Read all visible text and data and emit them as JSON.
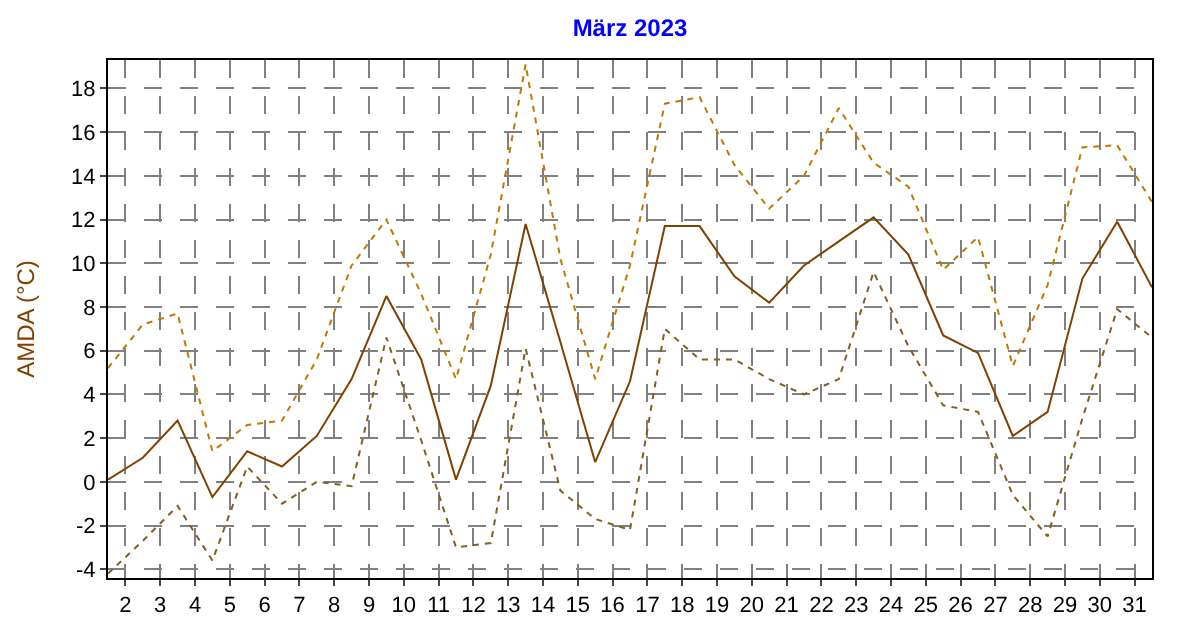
{
  "chart_data": {
    "type": "line",
    "title": "März 2023",
    "ylabel": "AMDA (°C)",
    "x": [
      1.5,
      2.5,
      3.5,
      4.5,
      5.5,
      6.5,
      7.5,
      8.5,
      9.5,
      10.5,
      11.5,
      12.5,
      13.5,
      14.5,
      15.5,
      16.5,
      17.5,
      18.5,
      19.5,
      20.5,
      21.5,
      22.5,
      23.5,
      24.5,
      25.5,
      26.5,
      27.5,
      28.5,
      29.5,
      30.5,
      31.5
    ],
    "series": [
      {
        "color": "#c07800",
        "line_style": "dotted",
        "values": [
          5.2,
          7.2,
          7.7,
          1.4,
          2.6,
          2.8,
          5.6,
          9.9,
          12.0,
          8.6,
          4.7,
          10.4,
          19.1,
          10.2,
          4.7,
          9.9,
          17.3,
          17.6,
          14.5,
          12.5,
          14.0,
          17.1,
          14.6,
          13.5,
          9.7,
          11.2,
          5.3,
          9.0,
          15.3,
          15.4,
          12.8
        ]
      },
      {
        "color": "#804000",
        "line_style": "solid",
        "values": [
          0.1,
          1.1,
          2.8,
          -0.7,
          1.4,
          0.7,
          2.1,
          4.7,
          8.5,
          5.6,
          0.1,
          4.4,
          11.8,
          6.4,
          0.9,
          4.6,
          11.7,
          11.7,
          9.4,
          8.2,
          9.9,
          11.0,
          12.1,
          10.4,
          6.7,
          5.9,
          2.1,
          3.2,
          9.3,
          11.9,
          8.9
        ]
      },
      {
        "color": "#806020",
        "line_style": "dotted",
        "values": [
          -4.2,
          -2.7,
          -1.1,
          -3.6,
          0.7,
          -1.0,
          0.0,
          -0.2,
          6.6,
          1.9,
          -3.0,
          -2.8,
          6.1,
          -0.4,
          -1.7,
          -2.2,
          7.0,
          5.6,
          5.6,
          4.7,
          4.0,
          4.7,
          9.6,
          6.2,
          3.5,
          3.2,
          -0.6,
          -2.5,
          2.9,
          7.9,
          6.6
        ]
      }
    ],
    "xlim": [
      1.5,
      31.5
    ],
    "xticks": [
      2,
      3,
      4,
      5,
      6,
      7,
      8,
      9,
      10,
      11,
      12,
      13,
      14,
      15,
      16,
      17,
      18,
      19,
      20,
      21,
      22,
      23,
      24,
      25,
      26,
      27,
      28,
      29,
      30,
      31
    ],
    "ylim": [
      -4.4,
      19.3
    ],
    "yticks": [
      -4,
      -2,
      0,
      2,
      4,
      6,
      8,
      10,
      12,
      14,
      16,
      18
    ],
    "grid": true
  }
}
